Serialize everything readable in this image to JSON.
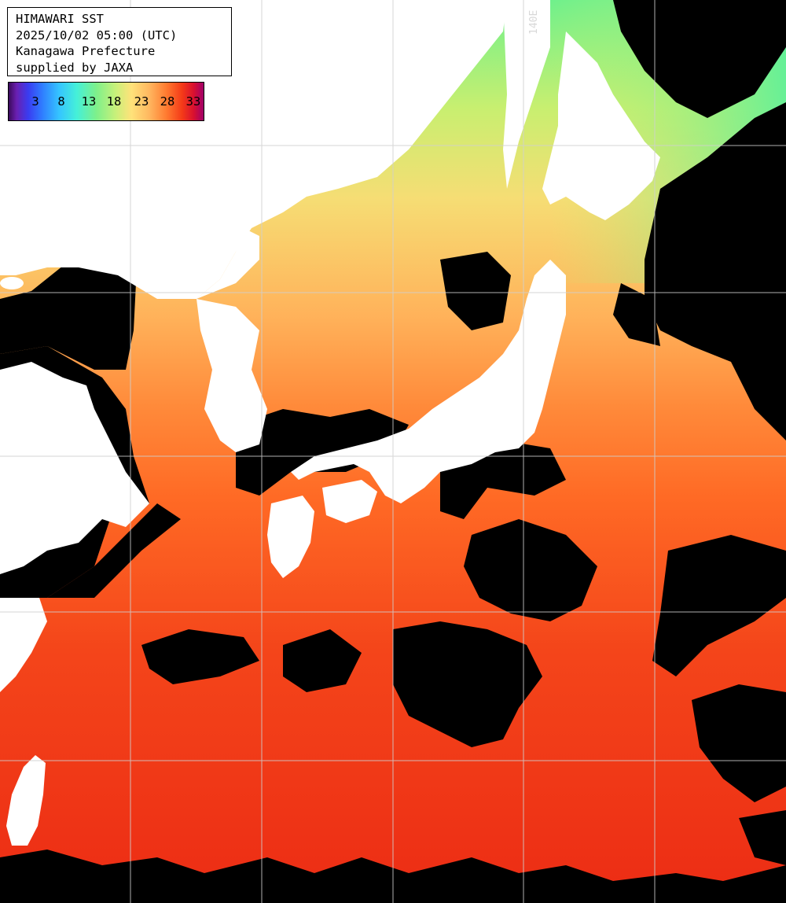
{
  "title_box": {
    "line1": "HIMAWARI SST",
    "line2": "2025/10/02 05:00 (UTC)",
    "line3": "Kanagawa Prefecture",
    "line4": "supplied by JAXA"
  },
  "legend": {
    "ticks": [
      "3",
      "8",
      "13",
      "18",
      "23",
      "28",
      "33"
    ],
    "colors": [
      "#3a0a5a",
      "#3a3cf0",
      "#35c5ff",
      "#7ef08a",
      "#ffe27a",
      "#ff7a30",
      "#d81030",
      "#a0006a"
    ]
  },
  "grid": {
    "longitude_label": "140E",
    "line_color": "#d0d0d0"
  },
  "colors": {
    "land": "#ffffff",
    "cloud_no_data": "#000000",
    "sea_warm": "#ee2a12",
    "sea_mid": "#ff7a28",
    "sea_cool": "#ffd070",
    "sea_cold": "#8ef07a"
  }
}
